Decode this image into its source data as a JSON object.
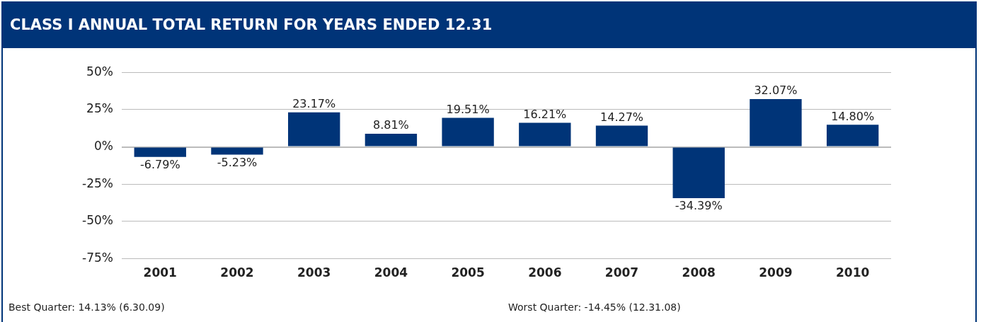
{
  "chart_data": {
    "type": "bar",
    "title": "CLASS I ANNUAL TOTAL RETURN FOR YEARS ENDED 12.31",
    "categories": [
      "2001",
      "2002",
      "2003",
      "2004",
      "2005",
      "2006",
      "2007",
      "2008",
      "2009",
      "2010"
    ],
    "values": [
      -6.79,
      -5.23,
      23.17,
      8.81,
      19.51,
      16.21,
      14.27,
      -34.39,
      32.07,
      14.8
    ],
    "value_labels": [
      "-6.79%",
      "-5.23%",
      "23.17%",
      "8.81%",
      "19.51%",
      "16.21%",
      "14.27%",
      "-34.39%",
      "32.07%",
      "14.80%"
    ],
    "color": "#003478",
    "ylim": [
      -75,
      50
    ],
    "yticks": [
      {
        "value": -75,
        "label": "-75%"
      },
      {
        "value": -50,
        "label": "-50%"
      },
      {
        "value": -25,
        "label": "-25%"
      },
      {
        "value": 0,
        "label": "0%"
      },
      {
        "value": 25,
        "label": "25%"
      },
      {
        "value": 50,
        "label": "50%"
      }
    ],
    "grid": "y",
    "annotations": [
      "Best Quarter:  14.13% (6.30.09)",
      "Worst Quarter:  -14.45% (12.31.08)"
    ]
  }
}
